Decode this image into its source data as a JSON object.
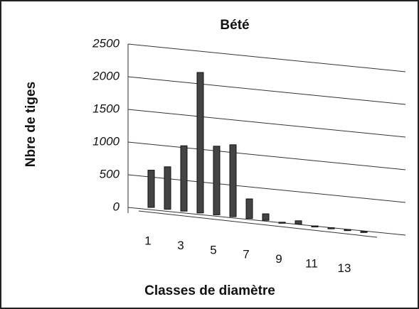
{
  "chart_data": {
    "type": "bar",
    "title": "Bété",
    "x_label": "Classes de diamètre",
    "y_label": "Nbre de tiges",
    "categories": [
      "1",
      null,
      "3",
      null,
      "5",
      null,
      "7",
      null,
      "9",
      null,
      "11",
      null,
      "13",
      null
    ],
    "values": [
      570,
      650,
      1000,
      2150,
      1050,
      1100,
      300,
      100,
      0,
      50,
      0,
      0,
      0,
      0
    ],
    "color": "#444444",
    "ylim": [
      0,
      2500
    ],
    "yticks": [
      0,
      500,
      1000,
      1500,
      2000,
      2500
    ],
    "grid": true
  }
}
